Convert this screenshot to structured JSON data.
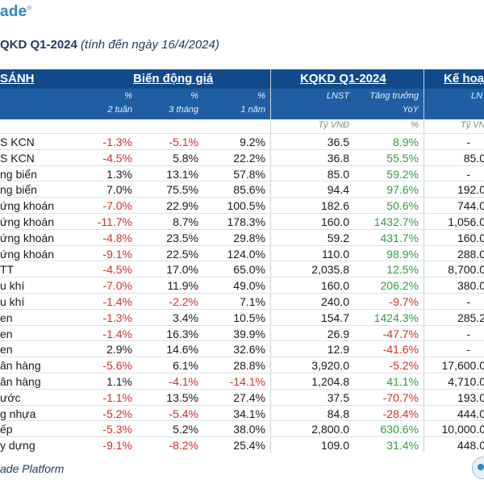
{
  "brand": {
    "logo_text": "ade",
    "logo_mark": "®"
  },
  "title": {
    "main": "QKD Q1-2024",
    "note": "(tính đến ngày 16/4/2024)"
  },
  "header": {
    "col_group_1": "SÁNH",
    "col_group_2": "Biến động giá",
    "col_group_3": "KQKD Q1-2024",
    "col_group_4": "Kế hoạ"
  },
  "subheader": {
    "c1_top": "%",
    "c1_bot": "2 tuần",
    "c2_top": "%",
    "c2_bot": "3 tháng",
    "c3_top": "%",
    "c3_bot": "1 năm",
    "c4": "LNST",
    "c5_top": "Tăng trưởng",
    "c5_bot": "YoY",
    "c6": "LN"
  },
  "units": {
    "u4": "Tỷ VNĐ",
    "u5": "%",
    "u6": "Tỷ VNĐ"
  },
  "rows": [
    {
      "name": "S KCN",
      "w2": "-1.3%",
      "m3": "-5.1%",
      "y1": "9.2%",
      "lnst": "36.5",
      "yoy": "8.9%",
      "plan": "-"
    },
    {
      "name": "S KCN",
      "w2": "-4.5%",
      "m3": "5.8%",
      "y1": "22.2%",
      "lnst": "36.8",
      "yoy": "55.5%",
      "plan": "85.0"
    },
    {
      "name": "ng biển",
      "w2": "1.3%",
      "m3": "13.1%",
      "y1": "57.8%",
      "lnst": "85.0",
      "yoy": "59.2%",
      "plan": "-"
    },
    {
      "name": "ng biển",
      "w2": "7.0%",
      "m3": "75.5%",
      "y1": "85.6%",
      "lnst": "94.4",
      "yoy": "97.6%",
      "plan": "192.0"
    },
    {
      "name": "ứng khoán",
      "w2": "-7.0%",
      "m3": "22.9%",
      "y1": "100.5%",
      "lnst": "182.6",
      "yoy": "50.6%",
      "plan": "744.0"
    },
    {
      "name": "ứng khoán",
      "w2": "-11.7%",
      "m3": "8.7%",
      "y1": "178.3%",
      "lnst": "160.0",
      "yoy": "1432.7%",
      "plan": "1,056.0"
    },
    {
      "name": "ứng khoán",
      "w2": "-4.8%",
      "m3": "23.5%",
      "y1": "29.8%",
      "lnst": "59.2",
      "yoy": "431.7%",
      "plan": "160.0"
    },
    {
      "name": "ứng khoán",
      "w2": "-9.1%",
      "m3": "22.5%",
      "y1": "124.0%",
      "lnst": "110.0",
      "yoy": "98.9%",
      "plan": "288.0"
    },
    {
      "name": "TT",
      "w2": "-4.5%",
      "m3": "17.0%",
      "y1": "65.0%",
      "lnst": "2,035.8",
      "yoy": "12.5%",
      "plan": "8,700.0"
    },
    {
      "name": "u khí",
      "w2": "-7.0%",
      "m3": "11.9%",
      "y1": "49.0%",
      "lnst": "160.0",
      "yoy": "206.2%",
      "plan": "380.0"
    },
    {
      "name": "u khí",
      "w2": "-1.4%",
      "m3": "-2.2%",
      "y1": "7.1%",
      "lnst": "240.0",
      "yoy": "-9.7%",
      "plan": "-"
    },
    {
      "name": "en",
      "w2": "-1.3%",
      "m3": "3.4%",
      "y1": "10.5%",
      "lnst": "154.7",
      "yoy": "1424.3%",
      "plan": "285.2"
    },
    {
      "name": "en",
      "w2": "-1.4%",
      "m3": "16.3%",
      "y1": "39.9%",
      "lnst": "26.9",
      "yoy": "-47.7%",
      "plan": "-"
    },
    {
      "name": "en",
      "w2": "2.9%",
      "m3": "14.6%",
      "y1": "32.6%",
      "lnst": "12.9",
      "yoy": "-41.6%",
      "plan": "-"
    },
    {
      "name": "ân hàng",
      "w2": "-5.6%",
      "m3": "6.1%",
      "y1": "28.8%",
      "lnst": "3,920.0",
      "yoy": "-5.2%",
      "plan": "17,600.0"
    },
    {
      "name": "ân hàng",
      "w2": "1.1%",
      "m3": "-4.1%",
      "y1": "-14.1%",
      "lnst": "1,204.8",
      "yoy": "41.1%",
      "plan": "4,710.0"
    },
    {
      "name": "ước",
      "w2": "-1.1%",
      "m3": "13.5%",
      "y1": "27.4%",
      "lnst": "37.5",
      "yoy": "-70.7%",
      "plan": "193.0"
    },
    {
      "name": "g nhựa",
      "w2": "-5.2%",
      "m3": "-5.4%",
      "y1": "34.1%",
      "lnst": "84.8",
      "yoy": "-28.4%",
      "plan": "444.0"
    },
    {
      "name": "ếp",
      "w2": "-5.3%",
      "m3": "5.2%",
      "y1": "38.0%",
      "lnst": "2,800.0",
      "yoy": "630.6%",
      "plan": "10,000.0"
    },
    {
      "name": "y dựng",
      "w2": "-9.1%",
      "m3": "-8.2%",
      "y1": "25.4%",
      "lnst": "109.0",
      "yoy": "31.4%",
      "plan": "448.0"
    }
  ],
  "footer": {
    "text": "ade Platform"
  },
  "colors": {
    "header_bg": "#114a8a",
    "subheader_bg": "#1f5ea3",
    "negative": "#d4302b",
    "positive_growth": "#2ea043"
  }
}
